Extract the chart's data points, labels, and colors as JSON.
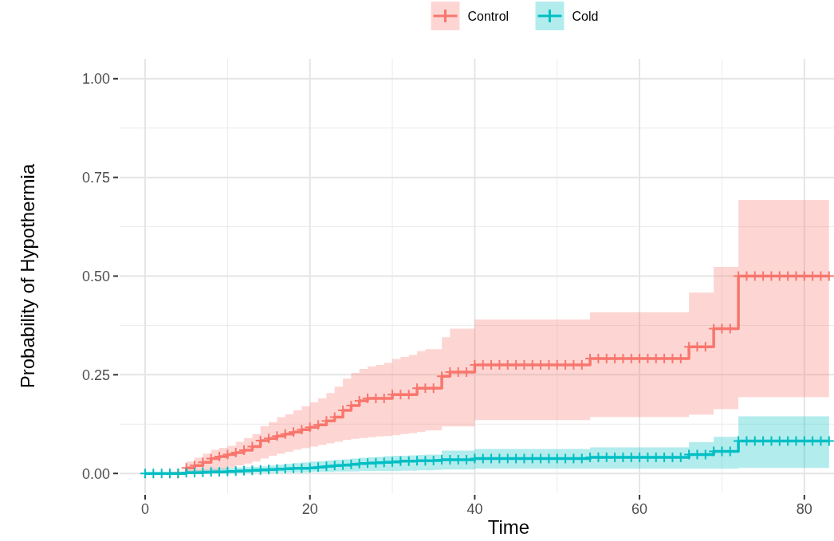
{
  "chart_data": {
    "type": "step",
    "xlabel": "Time",
    "ylabel": "Probability of Hypothermia",
    "x": [
      0,
      1,
      2,
      3,
      4,
      5,
      6,
      7,
      8,
      9,
      10,
      11,
      12,
      13,
      14,
      15,
      16,
      17,
      18,
      19,
      20,
      21,
      22,
      23,
      24,
      25,
      26,
      27,
      28,
      29,
      30,
      31,
      32,
      33,
      34,
      35,
      36,
      37,
      38,
      39,
      40,
      41,
      42,
      43,
      44,
      45,
      46,
      47,
      48,
      49,
      50,
      51,
      52,
      53,
      54,
      55,
      56,
      57,
      58,
      59,
      60,
      61,
      62,
      63,
      64,
      65,
      66,
      67,
      68,
      69,
      70,
      71,
      72,
      73,
      74,
      75,
      76,
      77,
      78,
      79,
      80,
      81,
      82,
      83
    ],
    "series": [
      {
        "name": "Control",
        "color": "#f8766d",
        "values": [
          null,
          null,
          null,
          0,
          0,
          0.014,
          0.02,
          0.028,
          0.038,
          0.043,
          0.048,
          0.053,
          0.059,
          0.068,
          0.083,
          0.089,
          0.095,
          0.1,
          0.105,
          0.111,
          0.117,
          0.123,
          0.133,
          0.143,
          0.16,
          0.172,
          0.184,
          0.19,
          0.19,
          0.19,
          0.2,
          0.2,
          0.2,
          0.216,
          0.216,
          0.216,
          0.246,
          0.257,
          0.257,
          0.257,
          0.275,
          0.275,
          0.275,
          0.275,
          0.275,
          0.275,
          0.275,
          0.275,
          0.275,
          0.275,
          0.275,
          0.275,
          0.275,
          0.275,
          0.291,
          0.291,
          0.291,
          0.291,
          0.291,
          0.291,
          0.291,
          0.291,
          0.291,
          0.291,
          0.291,
          0.291,
          0.321,
          0.321,
          0.321,
          0.367,
          0.367,
          0.367,
          0.5,
          0.5,
          0.5,
          0.5,
          0.5,
          0.5,
          0.5,
          0.5,
          0.5,
          0.5,
          0.5,
          0.5
        ],
        "lower": [
          0,
          0,
          0,
          0,
          0,
          0,
          0,
          0.003,
          0.005,
          0.01,
          0.015,
          0.02,
          0.025,
          0.03,
          0.038,
          0.045,
          0.05,
          0.055,
          0.06,
          0.064,
          0.068,
          0.072,
          0.076,
          0.08,
          0.085,
          0.088,
          0.09,
          0.092,
          0.094,
          0.095,
          0.097,
          0.1,
          0.102,
          0.105,
          0.109,
          0.109,
          0.119,
          0.119,
          0.119,
          0.119,
          0.135,
          0.135,
          0.135,
          0.135,
          0.135,
          0.135,
          0.135,
          0.135,
          0.135,
          0.135,
          0.135,
          0.135,
          0.135,
          0.135,
          0.143,
          0.143,
          0.143,
          0.143,
          0.143,
          0.143,
          0.143,
          0.143,
          0.143,
          0.143,
          0.143,
          0.143,
          0.149,
          0.149,
          0.149,
          0.163,
          0.163,
          0.163,
          0.193,
          0.193,
          0.193,
          0.193,
          0.193,
          0.193,
          0.193,
          0.193,
          0.193,
          0.193,
          0.193,
          0.193
        ],
        "upper": [
          0,
          0,
          0,
          0,
          0,
          0.03,
          0.04,
          0.05,
          0.06,
          0.065,
          0.07,
          0.08,
          0.09,
          0.1,
          0.12,
          0.13,
          0.143,
          0.15,
          0.16,
          0.17,
          0.18,
          0.19,
          0.204,
          0.22,
          0.24,
          0.255,
          0.265,
          0.271,
          0.275,
          0.28,
          0.29,
          0.295,
          0.3,
          0.31,
          0.315,
          0.315,
          0.345,
          0.367,
          0.367,
          0.367,
          0.39,
          0.39,
          0.39,
          0.39,
          0.39,
          0.39,
          0.39,
          0.39,
          0.39,
          0.39,
          0.39,
          0.39,
          0.39,
          0.39,
          0.408,
          0.408,
          0.408,
          0.408,
          0.408,
          0.408,
          0.408,
          0.408,
          0.408,
          0.408,
          0.408,
          0.408,
          0.458,
          0.458,
          0.458,
          0.523,
          0.523,
          0.523,
          0.693,
          0.693,
          0.693,
          0.693,
          0.693,
          0.693,
          0.693,
          0.693,
          0.693,
          0.693,
          0.693,
          0.693
        ]
      },
      {
        "name": "Cold",
        "color": "#00bfc4",
        "values": [
          0,
          0,
          0,
          0,
          0,
          0.002,
          0.002,
          0.003,
          0.004,
          0.004,
          0.005,
          0.006,
          0.007,
          0.008,
          0.009,
          0.01,
          0.011,
          0.012,
          0.013,
          0.013,
          0.014,
          0.016,
          0.018,
          0.02,
          0.021,
          0.023,
          0.025,
          0.026,
          0.027,
          0.028,
          0.029,
          0.031,
          0.031,
          0.032,
          0.032,
          0.033,
          0.035,
          0.035,
          0.035,
          0.035,
          0.038,
          0.038,
          0.038,
          0.038,
          0.038,
          0.038,
          0.038,
          0.038,
          0.038,
          0.038,
          0.038,
          0.038,
          0.038,
          0.038,
          0.041,
          0.041,
          0.041,
          0.041,
          0.041,
          0.041,
          0.041,
          0.041,
          0.041,
          0.041,
          0.041,
          0.041,
          0.048,
          0.048,
          0.048,
          0.056,
          0.056,
          0.056,
          0.082,
          0.082,
          0.082,
          0.082,
          0.082,
          0.082,
          0.082,
          0.082,
          0.082,
          0.082,
          0.082,
          0.082
        ],
        "lower": [
          0,
          0,
          0,
          0,
          0,
          0,
          0,
          0,
          0,
          0,
          0.001,
          0.001,
          0.001,
          0.002,
          0.002,
          0.002,
          0.003,
          0.003,
          0.003,
          0.003,
          0.004,
          0.004,
          0.004,
          0.005,
          0.005,
          0.005,
          0.006,
          0.006,
          0.006,
          0.006,
          0.006,
          0.007,
          0.007,
          0.008,
          0.008,
          0.009,
          0.01,
          0.01,
          0.01,
          0.01,
          0.012,
          0.012,
          0.012,
          0.012,
          0.012,
          0.012,
          0.012,
          0.012,
          0.012,
          0.012,
          0.012,
          0.012,
          0.012,
          0.012,
          0.012,
          0.012,
          0.012,
          0.012,
          0.012,
          0.012,
          0.012,
          0.012,
          0.012,
          0.012,
          0.012,
          0.012,
          0.012,
          0.012,
          0.012,
          0.012,
          0.012,
          0.012,
          0.014,
          0.014,
          0.014,
          0.014,
          0.014,
          0.014,
          0.014,
          0.014,
          0.014,
          0.014,
          0.014,
          0.014
        ],
        "upper": [
          0,
          0,
          0,
          0,
          0,
          0.008,
          0.009,
          0.01,
          0.012,
          0.013,
          0.014,
          0.015,
          0.016,
          0.017,
          0.018,
          0.02,
          0.022,
          0.024,
          0.026,
          0.028,
          0.03,
          0.031,
          0.033,
          0.035,
          0.036,
          0.038,
          0.04,
          0.041,
          0.042,
          0.044,
          0.045,
          0.045,
          0.046,
          0.047,
          0.048,
          0.048,
          0.058,
          0.058,
          0.058,
          0.058,
          0.062,
          0.062,
          0.062,
          0.062,
          0.062,
          0.062,
          0.062,
          0.062,
          0.062,
          0.062,
          0.062,
          0.062,
          0.062,
          0.062,
          0.066,
          0.066,
          0.066,
          0.066,
          0.066,
          0.066,
          0.066,
          0.066,
          0.066,
          0.066,
          0.066,
          0.066,
          0.079,
          0.079,
          0.079,
          0.093,
          0.093,
          0.093,
          0.145,
          0.145,
          0.145,
          0.145,
          0.145,
          0.145,
          0.145,
          0.145,
          0.145,
          0.145,
          0.145,
          0.145
        ]
      }
    ],
    "xlim": [
      -3.1,
      83.6
    ],
    "xticks": [
      0,
      20,
      40,
      60,
      80
    ],
    "ylim": [
      -0.05,
      1.05
    ],
    "yticks": [
      {
        "value": 0,
        "label": "0.00"
      },
      {
        "value": 0.25,
        "label": "0.25"
      },
      {
        "value": 0.5,
        "label": "0.50"
      },
      {
        "value": 0.75,
        "label": "0.75"
      },
      {
        "value": 1,
        "label": "1.00"
      }
    ],
    "grid": true,
    "legend": "top",
    "marker": "cross",
    "line_style": "solid"
  }
}
